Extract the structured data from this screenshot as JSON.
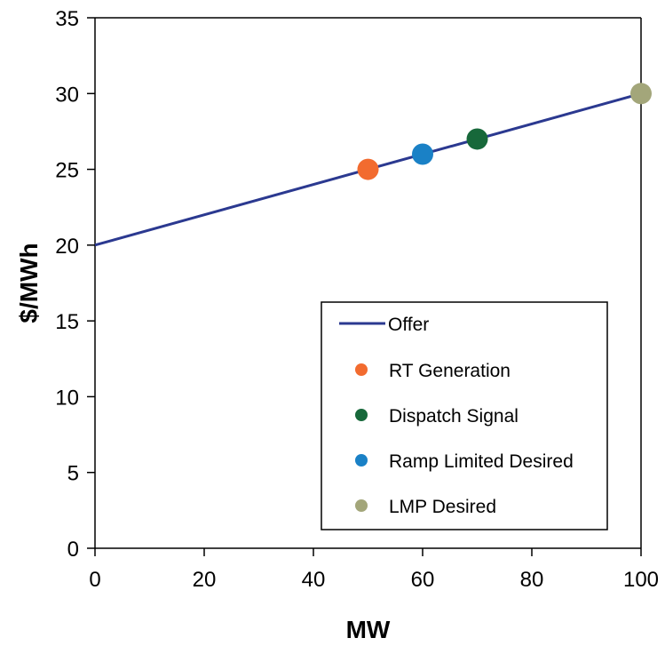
{
  "chart_data": {
    "type": "scatter",
    "xlabel": "MW",
    "ylabel": "$/MWh",
    "xlim": [
      0,
      100
    ],
    "ylim": [
      0,
      35
    ],
    "xticks": [
      0,
      20,
      40,
      60,
      80,
      100
    ],
    "yticks": [
      0,
      5,
      10,
      15,
      20,
      25,
      30,
      35
    ],
    "grid": false,
    "legend_position": "bottom-right",
    "line_series": {
      "name": "Offer",
      "color": "#2b3990",
      "x": [
        0,
        100
      ],
      "y": [
        20,
        30
      ]
    },
    "point_series": [
      {
        "name": "RT Generation",
        "color": "#f26b2f",
        "x": 50,
        "y": 25
      },
      {
        "name": "Dispatch Signal",
        "color": "#17683a",
        "x": 70,
        "y": 27
      },
      {
        "name": "Ramp Limited Desired",
        "color": "#1a81c6",
        "x": 60,
        "y": 26
      },
      {
        "name": "LMP Desired",
        "color": "#a3a67a",
        "x": 100,
        "y": 30
      }
    ]
  }
}
